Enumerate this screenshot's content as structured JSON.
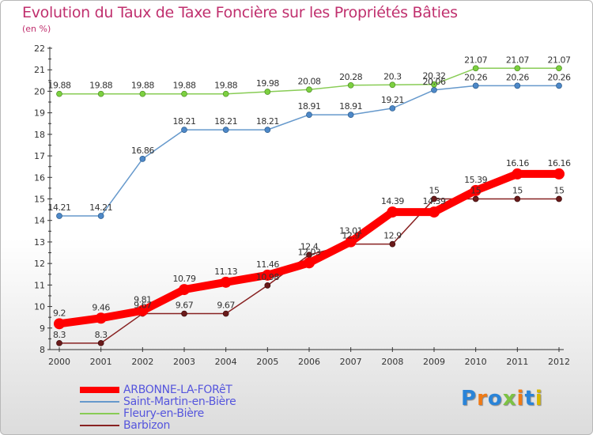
{
  "header": {
    "title": "Evolution du Taux de Taxe Foncière sur les Propriétés Bâties",
    "unit": "(en %)"
  },
  "logo": {
    "text": "Proxiti",
    "colors": [
      "#2a84d8",
      "#f07a14",
      "#2a84d8",
      "#7cc243",
      "#f07a14",
      "#2a84d8",
      "#d6b800"
    ]
  },
  "chart_data": {
    "type": "line",
    "x": [
      "2000",
      "2001",
      "2002",
      "2003",
      "2004",
      "2005",
      "2006",
      "2007",
      "2008",
      "2009",
      "2010",
      "2011",
      "2012"
    ],
    "ylim": [
      8,
      22
    ],
    "yticks": [
      "8",
      "9",
      "10",
      "11",
      "12",
      "13",
      "14",
      "15",
      "16",
      "17",
      "18",
      "19",
      "20",
      "21",
      "22"
    ],
    "grid": false,
    "legend_position": "bottom-left",
    "series": [
      {
        "name": "ARBONNE-LA-FORêT",
        "color": "#ff0000",
        "values": [
          9.2,
          9.46,
          9.81,
          10.79,
          11.13,
          11.46,
          12.03,
          13.01,
          14.39,
          14.39,
          15.39,
          16.16,
          16.16
        ],
        "labels": [
          "9.2",
          "9.46",
          "9.81",
          "10.79",
          "11.13",
          "11.46",
          "12.03",
          "13.01",
          "14.39",
          "14.39",
          "15.39",
          "16.16",
          "16.16"
        ]
      },
      {
        "name": "Saint-Martin-en-Bière",
        "color": "#6699cc",
        "values": [
          14.21,
          14.21,
          16.86,
          18.21,
          18.21,
          18.21,
          18.91,
          18.91,
          19.21,
          20.06,
          20.26,
          20.26,
          20.26
        ],
        "labels": [
          "14.21",
          "14.21",
          "16.86",
          "18.21",
          "18.21",
          "18.21",
          "18.91",
          "18.91",
          "19.21",
          "20.06",
          "20.26",
          "20.26",
          "20.26"
        ]
      },
      {
        "name": "Fleury-en-Bière",
        "color": "#88cc55",
        "values": [
          19.88,
          19.88,
          19.88,
          19.88,
          19.88,
          19.98,
          20.08,
          20.28,
          20.3,
          20.32,
          21.07,
          21.07,
          21.07
        ],
        "labels": [
          "19.88",
          "19.88",
          "19.88",
          "19.88",
          "19.88",
          "19.98",
          "20.08",
          "20.28",
          "20.3",
          "20.32",
          "21.07",
          "21.07",
          "21.07"
        ]
      },
      {
        "name": "Barbizon",
        "color": "#882222",
        "values": [
          8.3,
          8.3,
          9.67,
          9.67,
          9.67,
          10.98,
          12.4,
          12.9,
          12.9,
          15,
          15,
          15,
          15
        ],
        "labels": [
          "8.3",
          "8.3",
          "9.67",
          "9.67",
          "9.67",
          "10.98",
          "12.4",
          "12.9",
          "12.9",
          "15",
          "15",
          "15",
          "15"
        ]
      }
    ]
  }
}
